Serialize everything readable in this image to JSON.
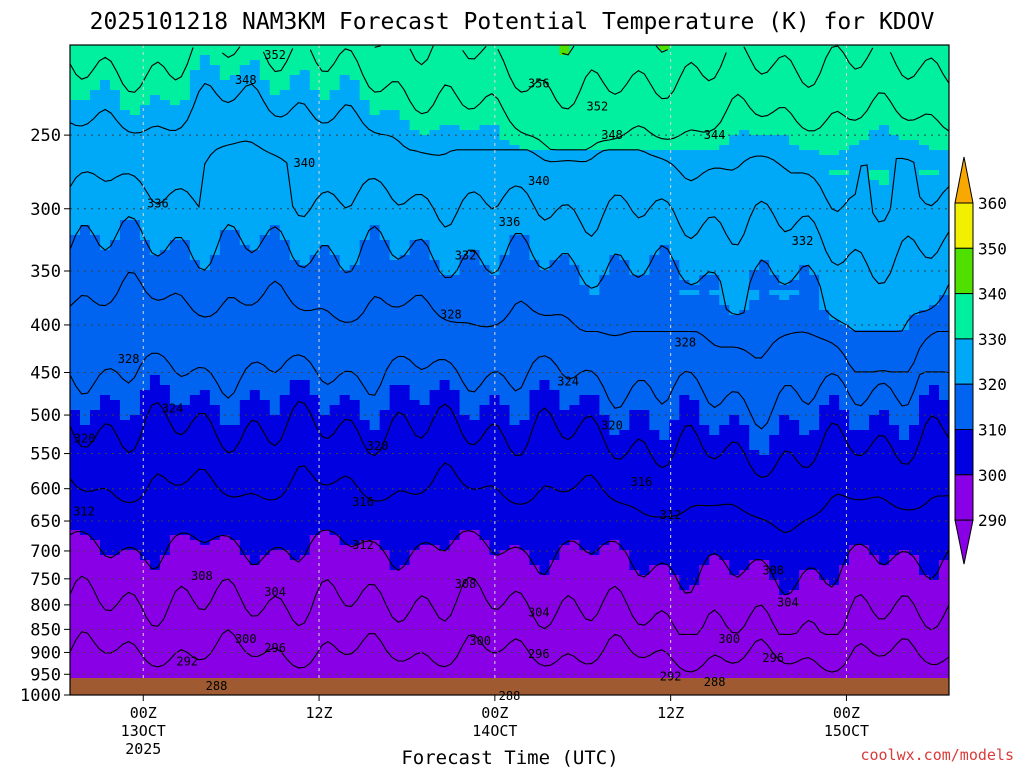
{
  "chart_data": {
    "type": "heatmap",
    "title": "2025101218 NAM3KM Forecast Potential Temperature (K) for KDOV",
    "xlabel": "Forecast Time (UTC)",
    "ylabel": "",
    "y_axis": "pressure (hPa), log scale, inverted",
    "ylim": [
      1000,
      200
    ],
    "y_ticks": [
      "250",
      "300",
      "350",
      "400",
      "450",
      "500",
      "550",
      "600",
      "650",
      "700",
      "750",
      "800",
      "850",
      "900",
      "950",
      "1000"
    ],
    "x_range_hours": [
      -5,
      55
    ],
    "x_ticks": [
      {
        "hour": 0,
        "label": "00Z",
        "sub": "13OCT",
        "sub2": "2025"
      },
      {
        "hour": 12,
        "label": "12Z",
        "sub": "",
        "sub2": ""
      },
      {
        "hour": 24,
        "label": "00Z",
        "sub": "14OCT",
        "sub2": ""
      },
      {
        "hour": 36,
        "label": "12Z",
        "sub": "",
        "sub2": ""
      },
      {
        "hour": 48,
        "label": "00Z",
        "sub": "15OCT",
        "sub2": ""
      }
    ],
    "colorbar": {
      "levels": [
        "290",
        "300",
        "310",
        "320",
        "330",
        "340",
        "350",
        "360"
      ],
      "colors": [
        "#8a00e6",
        "#0000e0",
        "#0064f0",
        "#00a8f8",
        "#00f0a0",
        "#50e000",
        "#f0f000",
        "#f8a800"
      ]
    },
    "contour_interval_K": 4,
    "contour_labels": [
      {
        "text": "352",
        "hour": 9,
        "p": 205
      },
      {
        "text": "348",
        "hour": 7,
        "p": 218
      },
      {
        "text": "356",
        "hour": 27,
        "p": 220
      },
      {
        "text": "352",
        "hour": 31,
        "p": 233
      },
      {
        "text": "348",
        "hour": 32,
        "p": 250
      },
      {
        "text": "344",
        "hour": 39,
        "p": 250
      },
      {
        "text": "340",
        "hour": 11,
        "p": 268
      },
      {
        "text": "340",
        "hour": 27,
        "p": 280
      },
      {
        "text": "336",
        "hour": 1,
        "p": 296
      },
      {
        "text": "336",
        "hour": 25,
        "p": 310
      },
      {
        "text": "332",
        "hour": 22,
        "p": 337
      },
      {
        "text": "332",
        "hour": 45,
        "p": 325
      },
      {
        "text": "328",
        "hour": 21,
        "p": 390
      },
      {
        "text": "328",
        "hour": -1,
        "p": 435
      },
      {
        "text": "328",
        "hour": 37,
        "p": 418
      },
      {
        "text": "324",
        "hour": 29,
        "p": 460
      },
      {
        "text": "324",
        "hour": 2,
        "p": 492
      },
      {
        "text": "320",
        "hour": -4,
        "p": 530
      },
      {
        "text": "320",
        "hour": 16,
        "p": 540
      },
      {
        "text": "320",
        "hour": 32,
        "p": 513
      },
      {
        "text": "316",
        "hour": 15,
        "p": 620
      },
      {
        "text": "316",
        "hour": 34,
        "p": 590
      },
      {
        "text": "312",
        "hour": -5,
        "p": 635
      },
      {
        "text": "312",
        "hour": 36,
        "p": 640
      },
      {
        "text": "312",
        "hour": 15,
        "p": 690
      },
      {
        "text": "308",
        "hour": 4,
        "p": 745
      },
      {
        "text": "308",
        "hour": 22,
        "p": 760
      },
      {
        "text": "308",
        "hour": 43,
        "p": 735
      },
      {
        "text": "304",
        "hour": 9,
        "p": 775
      },
      {
        "text": "304",
        "hour": 27,
        "p": 815
      },
      {
        "text": "304",
        "hour": 44,
        "p": 795
      },
      {
        "text": "300",
        "hour": 7,
        "p": 870
      },
      {
        "text": "300",
        "hour": 23,
        "p": 875
      },
      {
        "text": "300",
        "hour": 40,
        "p": 870
      },
      {
        "text": "296",
        "hour": 9,
        "p": 890
      },
      {
        "text": "296",
        "hour": 27,
        "p": 903
      },
      {
        "text": "296",
        "hour": 43,
        "p": 913
      },
      {
        "text": "292",
        "hour": 3,
        "p": 920
      },
      {
        "text": "292",
        "hour": 36,
        "p": 955
      },
      {
        "text": "288",
        "hour": 5,
        "p": 978
      },
      {
        "text": "288",
        "hour": 25,
        "p": 1002
      },
      {
        "text": "288",
        "hour": 39,
        "p": 968
      }
    ]
  },
  "credit": "coolwx.com/models",
  "colors": {
    "ground": "#a05a32",
    "grid": "#404040"
  }
}
